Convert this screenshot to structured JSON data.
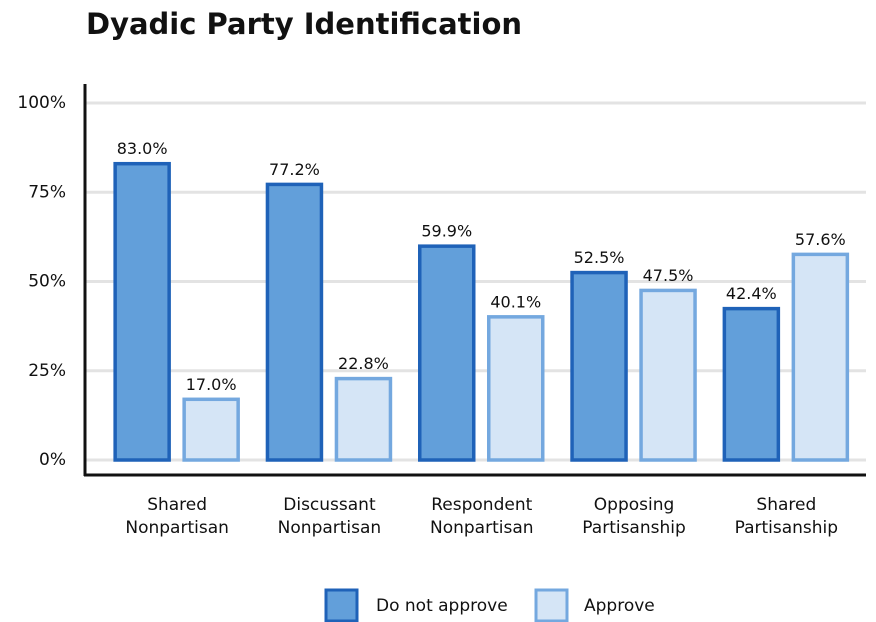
{
  "chart_data": {
    "type": "bar",
    "title": "Dyadic Party Identification",
    "categories": [
      "Shared Nonpartisan",
      "Discussant Nonpartisan",
      "Respondent Nonpartisan",
      "Opposing Partisanship",
      "Shared Partisanship"
    ],
    "series": [
      {
        "name": "Do not approve",
        "color": "#629fda",
        "edgecolor": "#1f62b8",
        "values": [
          83.0,
          77.2,
          59.9,
          52.5,
          42.4
        ],
        "value_labels": [
          "83.0%",
          "77.2%",
          "59.9%",
          "52.5%",
          "42.4%"
        ]
      },
      {
        "name": "Approve",
        "color": "#d5e5f6",
        "edgecolor": "#74a8df",
        "values": [
          17.0,
          22.8,
          40.1,
          47.5,
          57.6
        ],
        "value_labels": [
          "17.0%",
          "22.8%",
          "40.1%",
          "47.5%",
          "57.6%"
        ]
      }
    ],
    "ylim": [
      0,
      100
    ],
    "yticks": [
      {
        "value": 0,
        "label": "0%"
      },
      {
        "value": 25,
        "label": "25%"
      },
      {
        "value": 50,
        "label": "50%"
      },
      {
        "value": 75,
        "label": "75%"
      },
      {
        "value": 100,
        "label": "100%"
      }
    ],
    "grid": true,
    "legend": "bottom"
  }
}
